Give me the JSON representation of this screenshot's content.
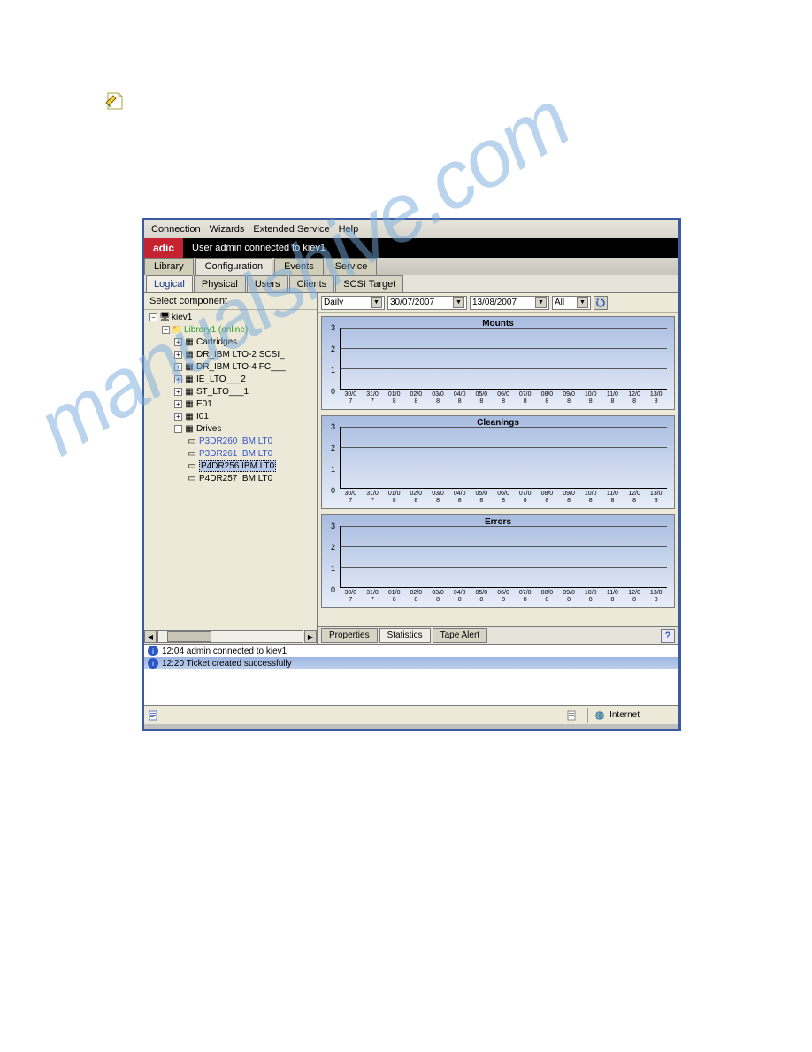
{
  "watermark_text": "manualshive.com",
  "menubar": {
    "items": [
      "Connection",
      "Wizards",
      "Extended Service",
      "Help"
    ]
  },
  "brand": "adic",
  "title_msg": "User admin connected to kiev1",
  "tabs_main": {
    "items": [
      "Library",
      "Configuration",
      "Events",
      "Service"
    ],
    "active": 1
  },
  "tabs_sub": {
    "items": [
      "Logical",
      "Physical",
      "Users",
      "Clients",
      "SCSI Target"
    ],
    "active": 0
  },
  "tree_header": "Select component",
  "tree": {
    "root": "kiev1",
    "library": "Library1 (online)",
    "nodes": [
      "Cartridges",
      "DR_IBM LTO-2 SCSI_",
      "DR_IBM LTO-4 FC___",
      "IE_LTO___2",
      "ST_LTO___1",
      "E01",
      "I01"
    ],
    "drives_label": "Drives",
    "drives": [
      "P3DR260 IBM LT0",
      "P3DR261 IBM LT0",
      "P4DR256 IBM LT0",
      "P4DR257 IBM LT0"
    ],
    "drive_selected_index": 2,
    "drive_link_indices": [
      0,
      1
    ]
  },
  "filters": {
    "period": "Daily",
    "date_from": "30/07/2007",
    "date_to": "13/08/2007",
    "scope": "All"
  },
  "charts": {
    "titles": [
      "Mounts",
      "Cleanings",
      "Errors"
    ],
    "y_ticks": [
      0,
      1,
      2,
      3
    ],
    "y_max": 3,
    "x_labels": [
      [
        "30/0",
        "7"
      ],
      [
        "31/0",
        "7"
      ],
      [
        "01/0",
        "8"
      ],
      [
        "02/0",
        "8"
      ],
      [
        "03/0",
        "8"
      ],
      [
        "04/0",
        "8"
      ],
      [
        "05/0",
        "8"
      ],
      [
        "06/0",
        "8"
      ],
      [
        "07/0",
        "8"
      ],
      [
        "08/0",
        "8"
      ],
      [
        "09/0",
        "8"
      ],
      [
        "10/0",
        "8"
      ],
      [
        "11/0",
        "8"
      ],
      [
        "12/0",
        "8"
      ],
      [
        "13/0",
        "8"
      ]
    ],
    "bg_gradient_top": "#a8bce0",
    "bg_gradient_bottom": "#e8eef8"
  },
  "bottom_tabs": {
    "items": [
      "Properties",
      "Statistics",
      "Tape Alert"
    ],
    "active": 1
  },
  "log": {
    "rows": [
      {
        "time": "12:04",
        "text": "admin connected to kiev1",
        "selected": false
      },
      {
        "time": "12:20",
        "text": "Ticket created successfully",
        "selected": true
      }
    ]
  },
  "statusbar": {
    "zone_label": "Internet"
  }
}
